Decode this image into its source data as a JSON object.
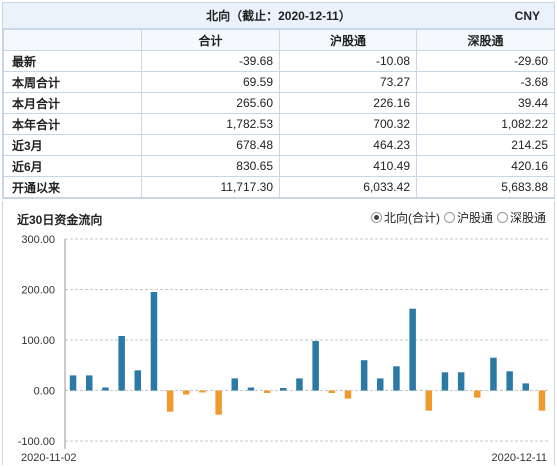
{
  "table": {
    "title": "北向（截止：2020-12-11）",
    "unit": "CNY",
    "columns": [
      "",
      "合计",
      "沪股通",
      "深股通"
    ],
    "rows": [
      {
        "label": "最新",
        "values": [
          "-39.68",
          "-10.08",
          "-29.60"
        ]
      },
      {
        "label": "本周合计",
        "values": [
          "69.59",
          "73.27",
          "-3.68"
        ]
      },
      {
        "label": "本月合计",
        "values": [
          "265.60",
          "226.16",
          "39.44"
        ]
      },
      {
        "label": "本年合计",
        "values": [
          "1,782.53",
          "700.32",
          "1,082.22"
        ]
      },
      {
        "label": "近3月",
        "values": [
          "678.48",
          "464.23",
          "214.25"
        ]
      },
      {
        "label": "近6月",
        "values": [
          "830.65",
          "410.49",
          "420.16"
        ]
      },
      {
        "label": "开通以来",
        "values": [
          "11,717.30",
          "6,033.42",
          "5,683.88"
        ]
      }
    ]
  },
  "chart": {
    "title": "近30日资金流向",
    "legend": [
      {
        "label": "北向(合计)",
        "selected": true
      },
      {
        "label": "沪股通",
        "selected": false
      },
      {
        "label": "深股通",
        "selected": false
      }
    ]
  },
  "colors": {
    "positive": "#2a7aa5",
    "negative": "#ef9a2c",
    "grid": "#c7c7c7"
  },
  "chart_data": {
    "type": "bar",
    "title": "近30日资金流向",
    "ylim": [
      -100,
      300
    ],
    "yticks": [
      "300.00",
      "200.00",
      "100.00",
      "0.00",
      "-100.00"
    ],
    "x_labels": [
      "2020-11-02",
      "2020-12-11"
    ],
    "values": [
      30,
      30,
      6,
      108,
      40,
      195,
      -42,
      -8,
      -4,
      -48,
      24,
      6,
      -5,
      5,
      24,
      98,
      -5,
      -16,
      60,
      24,
      48,
      162,
      -40,
      36,
      36,
      -14,
      65,
      38,
      14,
      -40
    ],
    "legend_position": "top-right",
    "grid": true
  }
}
